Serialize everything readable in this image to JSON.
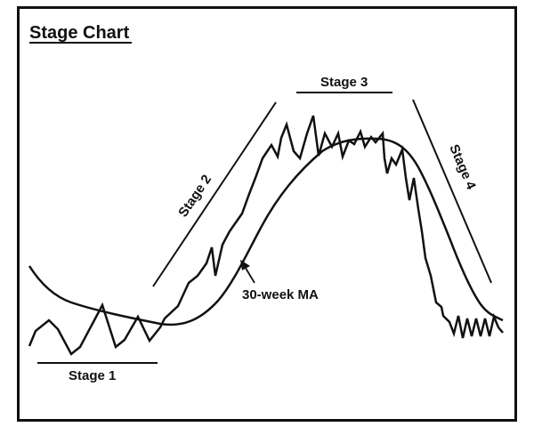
{
  "title": "Stage Chart",
  "labels": {
    "stage1": "Stage 1",
    "stage2": "Stage 2",
    "stage3": "Stage 3",
    "stage4": "Stage 4",
    "moving_average": "30-week MA"
  },
  "colors": {
    "ink": "#111111",
    "background": "#ffffff"
  }
}
